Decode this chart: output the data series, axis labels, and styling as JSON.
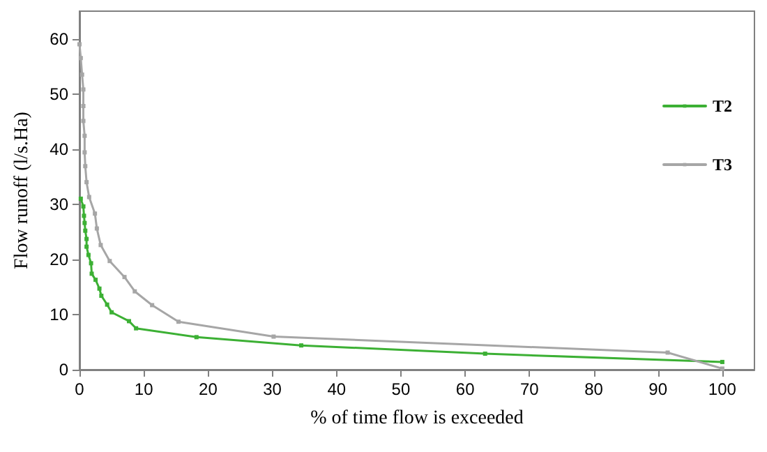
{
  "chart_data": {
    "type": "line",
    "xlabel": "% of time flow is exceeded",
    "ylabel": "Flow runoff (l/s.Ha)",
    "xlim": [
      0,
      105
    ],
    "xticks": [
      0,
      10,
      20,
      30,
      40,
      50,
      60,
      70,
      80,
      90,
      100
    ],
    "ylim": [
      0,
      65
    ],
    "yticks": [
      0,
      10,
      20,
      30,
      40,
      50,
      60
    ],
    "grid": false,
    "legend": "right",
    "marker": "square",
    "line_style": "solid",
    "series": [
      {
        "name": "T2",
        "color": "#3cb034",
        "x": [
          0.2,
          0.6,
          0.7,
          0.8,
          0.9,
          1.1,
          1.1,
          1.4,
          1.8,
          1.9,
          2.5,
          3.1,
          3.4,
          4.3,
          5,
          7.7,
          8.8,
          18.2,
          34.5,
          63.1,
          100
        ],
        "values": [
          31,
          29.6,
          27.9,
          26.6,
          25.2,
          23.7,
          22.3,
          20.8,
          19.3,
          17.4,
          16.3,
          14.7,
          13.4,
          11.8,
          10.4,
          8.8,
          7.5,
          5.9,
          4.4,
          2.9,
          1.4
        ]
      },
      {
        "name": "T3",
        "color": "#a6a6a6",
        "x": [
          0,
          0.2,
          0.4,
          0.6,
          0.6,
          0.6,
          0.8,
          0.8,
          0.9,
          1.1,
          1.5,
          2.4,
          2.7,
          3.3,
          4.7,
          7,
          8.6,
          11.3,
          15.4,
          30.2,
          91.5,
          100
        ],
        "values": [
          59,
          56.5,
          53.5,
          50.8,
          47.8,
          45.1,
          42.4,
          39.4,
          36.9,
          34,
          31.3,
          28.3,
          25.6,
          22.6,
          19.7,
          16.8,
          14.2,
          11.7,
          8.7,
          6,
          3.1,
          0.2
        ]
      }
    ]
  }
}
